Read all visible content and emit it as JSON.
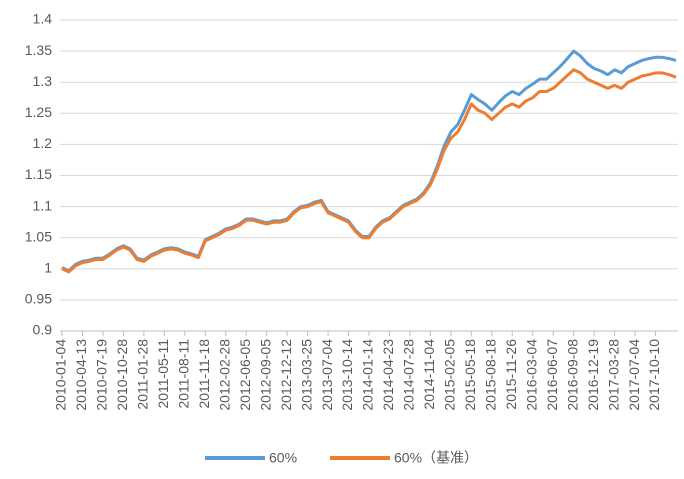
{
  "chart_data": {
    "type": "line",
    "categories": [
      "2010-01-04",
      null,
      null,
      "2010-04-13",
      null,
      null,
      "2010-07-19",
      null,
      null,
      "2010-10-28",
      null,
      null,
      "2011-01-28",
      null,
      null,
      "2011-05-11",
      null,
      null,
      "2011-08-11",
      null,
      null,
      "2011-11-18",
      null,
      null,
      "2012-02-28",
      null,
      null,
      "2012-06-05",
      null,
      null,
      "2012-09-05",
      null,
      null,
      "2012-12-12",
      null,
      null,
      "2013-03-25",
      null,
      null,
      "2013-07-04",
      null,
      null,
      "2013-10-14",
      null,
      null,
      "2014-01-14",
      null,
      null,
      "2014-04-23",
      null,
      null,
      "2014-07-28",
      null,
      null,
      "2014-11-04",
      null,
      null,
      "2015-02-05",
      null,
      null,
      "2015-05-18",
      null,
      null,
      "2015-08-18",
      null,
      null,
      "2015-11-26",
      null,
      null,
      "2016-03-04",
      null,
      null,
      "2016-06-07",
      null,
      null,
      "2016-09-08",
      null,
      null,
      "2016-12-19",
      null,
      null,
      "2017-03-28",
      null,
      null,
      "2017-07-04",
      null,
      null,
      "2017-10-10",
      null,
      null,
      null
    ],
    "series": [
      {
        "name": "60%",
        "color": "#5b9bd5",
        "values": [
          1.002,
          0.997,
          1.007,
          1.012,
          1.014,
          1.017,
          1.017,
          1.024,
          1.032,
          1.037,
          1.032,
          1.017,
          1.014,
          1.022,
          1.027,
          1.032,
          1.034,
          1.032,
          1.027,
          1.024,
          1.02,
          1.047,
          1.052,
          1.057,
          1.064,
          1.067,
          1.072,
          1.08,
          1.08,
          1.077,
          1.074,
          1.077,
          1.077,
          1.08,
          1.092,
          1.1,
          1.102,
          1.107,
          1.11,
          1.092,
          1.087,
          1.082,
          1.077,
          1.062,
          1.052,
          1.052,
          1.067,
          1.077,
          1.082,
          1.092,
          1.102,
          1.107,
          1.112,
          1.122,
          1.138,
          1.165,
          1.197,
          1.22,
          1.232,
          1.255,
          1.28,
          1.272,
          1.265,
          1.255,
          1.267,
          1.278,
          1.285,
          1.28,
          1.29,
          1.297,
          1.305,
          1.305,
          1.315,
          1.325,
          1.337,
          1.35,
          1.342,
          1.33,
          1.322,
          1.318,
          1.312,
          1.32,
          1.315,
          1.325,
          1.33,
          1.335,
          1.338,
          1.34,
          1.34,
          1.338,
          1.335
        ]
      },
      {
        "name": "60%（基准）",
        "color": "#ed7d31",
        "values": [
          1.0,
          0.995,
          1.005,
          1.01,
          1.012,
          1.015,
          1.015,
          1.022,
          1.03,
          1.035,
          1.03,
          1.015,
          1.012,
          1.02,
          1.025,
          1.03,
          1.032,
          1.03,
          1.025,
          1.022,
          1.018,
          1.045,
          1.05,
          1.055,
          1.062,
          1.065,
          1.07,
          1.078,
          1.078,
          1.075,
          1.072,
          1.075,
          1.075,
          1.078,
          1.09,
          1.098,
          1.1,
          1.105,
          1.108,
          1.09,
          1.085,
          1.08,
          1.075,
          1.06,
          1.05,
          1.05,
          1.065,
          1.075,
          1.08,
          1.09,
          1.1,
          1.105,
          1.11,
          1.12,
          1.135,
          1.16,
          1.19,
          1.21,
          1.22,
          1.24,
          1.265,
          1.255,
          1.25,
          1.24,
          1.25,
          1.26,
          1.265,
          1.26,
          1.27,
          1.275,
          1.285,
          1.285,
          1.29,
          1.3,
          1.31,
          1.32,
          1.315,
          1.305,
          1.3,
          1.295,
          1.29,
          1.295,
          1.29,
          1.3,
          1.305,
          1.31,
          1.312,
          1.315,
          1.315,
          1.312,
          1.308
        ]
      }
    ],
    "ylim": [
      0.9,
      1.4
    ],
    "yticks": [
      0.9,
      0.95,
      1,
      1.05,
      1.1,
      1.15,
      1.2,
      1.25,
      1.3,
      1.35,
      1.4
    ],
    "grid": true,
    "legend": "bottom"
  }
}
